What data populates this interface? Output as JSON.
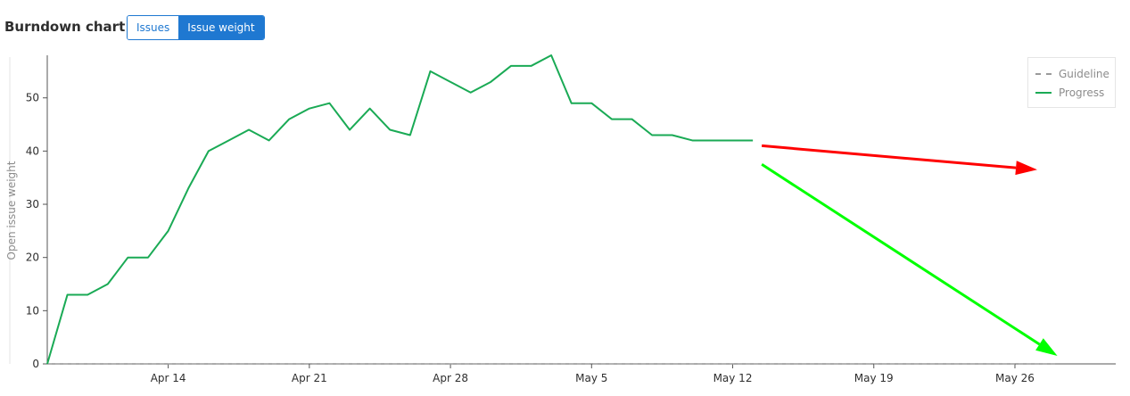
{
  "header": {
    "title": "Burndown chart",
    "toggle": [
      {
        "label": "Issues",
        "active": false
      },
      {
        "label": "Issue weight",
        "active": true
      }
    ]
  },
  "colors": {
    "progress": "#1aaa55",
    "guideline": "#9a9a9a",
    "accent": "#1f78d1",
    "arrow_red": "#ff0000",
    "arrow_green": "#00ff00"
  },
  "chart_data": {
    "type": "line",
    "ylabel": "Open issue weight",
    "ylim": [
      0,
      58
    ],
    "yticks": [
      0,
      10,
      20,
      30,
      40,
      50
    ],
    "x_range": [
      "2019-04-08",
      "2019-05-31"
    ],
    "xticks": [
      {
        "date": "2019-04-14",
        "label": "Apr 14"
      },
      {
        "date": "2019-04-21",
        "label": "Apr 21"
      },
      {
        "date": "2019-04-28",
        "label": "Apr 28"
      },
      {
        "date": "2019-05-05",
        "label": "May 5"
      },
      {
        "date": "2019-05-12",
        "label": "May 12"
      },
      {
        "date": "2019-05-19",
        "label": "May 19"
      },
      {
        "date": "2019-05-26",
        "label": "May 26"
      }
    ],
    "legend": {
      "position": "top-right",
      "items": [
        {
          "name": "Guideline",
          "style": "dashed"
        },
        {
          "name": "Progress",
          "style": "solid"
        }
      ]
    },
    "series": [
      {
        "name": "Guideline",
        "points": [
          {
            "x": "2019-04-08",
            "y": 0
          },
          {
            "x": "2019-05-28",
            "y": 0
          }
        ]
      },
      {
        "name": "Progress",
        "points": [
          {
            "x": "2019-04-08",
            "y": 0
          },
          {
            "x": "2019-04-09",
            "y": 13
          },
          {
            "x": "2019-04-10",
            "y": 13
          },
          {
            "x": "2019-04-11",
            "y": 15
          },
          {
            "x": "2019-04-12",
            "y": 20
          },
          {
            "x": "2019-04-13",
            "y": 20
          },
          {
            "x": "2019-04-14",
            "y": 25
          },
          {
            "x": "2019-04-15",
            "y": 33
          },
          {
            "x": "2019-04-16",
            "y": 40
          },
          {
            "x": "2019-04-17",
            "y": 42
          },
          {
            "x": "2019-04-18",
            "y": 44
          },
          {
            "x": "2019-04-19",
            "y": 42
          },
          {
            "x": "2019-04-20",
            "y": 46
          },
          {
            "x": "2019-04-21",
            "y": 48
          },
          {
            "x": "2019-04-22",
            "y": 49
          },
          {
            "x": "2019-04-23",
            "y": 44
          },
          {
            "x": "2019-04-24",
            "y": 48
          },
          {
            "x": "2019-04-25",
            "y": 44
          },
          {
            "x": "2019-04-26",
            "y": 43
          },
          {
            "x": "2019-04-27",
            "y": 55
          },
          {
            "x": "2019-04-28",
            "y": 53
          },
          {
            "x": "2019-04-29",
            "y": 51
          },
          {
            "x": "2019-04-30",
            "y": 53
          },
          {
            "x": "2019-05-01",
            "y": 56
          },
          {
            "x": "2019-05-02",
            "y": 56
          },
          {
            "x": "2019-05-03",
            "y": 58
          },
          {
            "x": "2019-05-04",
            "y": 49
          },
          {
            "x": "2019-05-05",
            "y": 49
          },
          {
            "x": "2019-05-06",
            "y": 46
          },
          {
            "x": "2019-05-07",
            "y": 46
          },
          {
            "x": "2019-05-08",
            "y": 43
          },
          {
            "x": "2019-05-09",
            "y": 43
          },
          {
            "x": "2019-05-10",
            "y": 42
          },
          {
            "x": "2019-05-11",
            "y": 42
          },
          {
            "x": "2019-05-12",
            "y": 42
          },
          {
            "x": "2019-05-13",
            "y": 42
          }
        ]
      }
    ],
    "annotations": [
      {
        "type": "arrow",
        "color": "red",
        "from": {
          "x": "2019-05-13",
          "y": 41
        },
        "to": {
          "x": "2019-05-26",
          "y": 36.5
        }
      },
      {
        "type": "arrow",
        "color": "green",
        "from": {
          "x": "2019-05-13",
          "y": 37.5
        },
        "to": {
          "x": "2019-05-27",
          "y": 1.5
        }
      }
    ]
  }
}
